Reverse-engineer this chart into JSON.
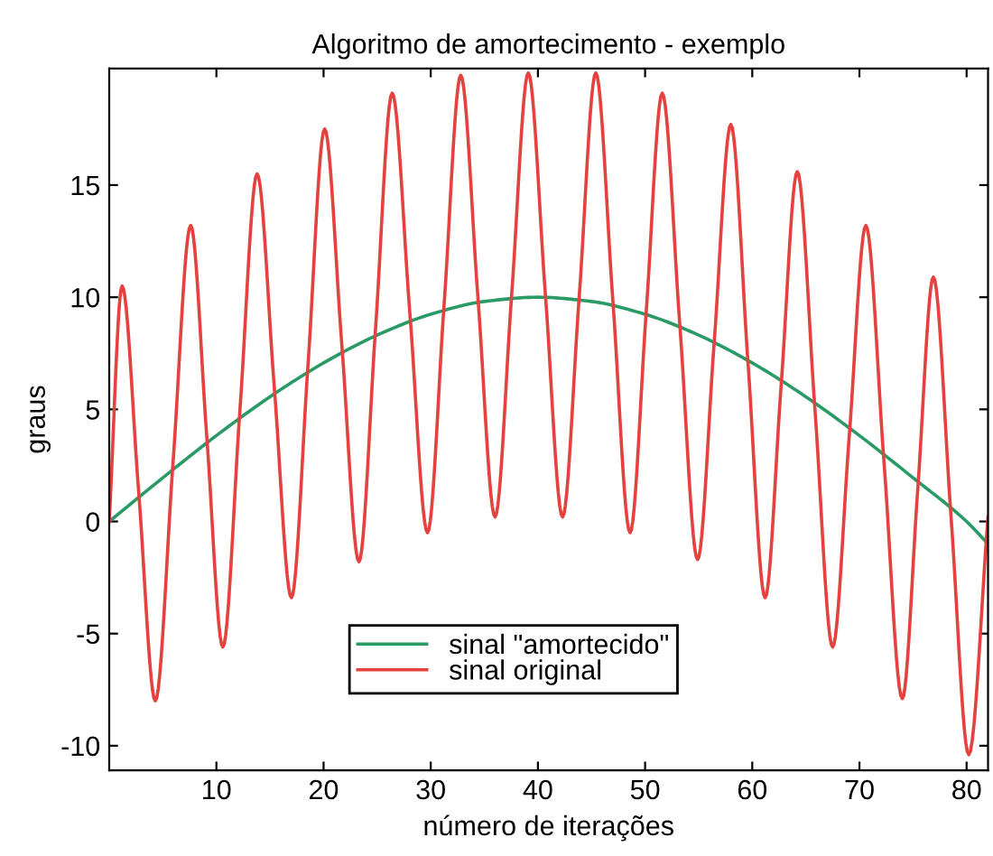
{
  "chart_data": {
    "type": "line",
    "title": "Algoritmo de amortecimento - exemplo",
    "xlabel": "número de iterações",
    "ylabel": "graus",
    "xlim": [
      0,
      82
    ],
    "ylim": [
      -11.1,
      20.2
    ],
    "xticks": [
      10,
      20,
      30,
      40,
      50,
      60,
      70,
      80
    ],
    "yticks": [
      -10,
      -5,
      0,
      5,
      10,
      15
    ],
    "grid": false,
    "legend": "bottom",
    "marker": "none",
    "line_style": "solid",
    "series": [
      {
        "name": "sinal \"amortecido\"",
        "color": "#2a9a66",
        "x": [
          0,
          5,
          10,
          15,
          20,
          25,
          30,
          35,
          40,
          45,
          50,
          55,
          60,
          65,
          70,
          75,
          80,
          82
        ],
        "values": [
          0,
          1.95,
          3.83,
          5.56,
          7.07,
          8.31,
          9.24,
          9.81,
          10,
          9.81,
          9.24,
          8.31,
          7.07,
          5.56,
          3.83,
          1.95,
          0,
          -1.0
        ]
      },
      {
        "name": "sinal original",
        "color": "#e5413f",
        "x": [
          0,
          1.2,
          2.75,
          4.3,
          5.95,
          7.6,
          9.1,
          10.6,
          12.2,
          13.8,
          15.4,
          17.0,
          18.55,
          20.1,
          21.7,
          23.3,
          24.85,
          26.4,
          28.05,
          29.7,
          31.25,
          32.8,
          34.4,
          36.0,
          37.55,
          39.1,
          40.7,
          42.3,
          43.85,
          45.4,
          47.0,
          48.6,
          50.1,
          51.6,
          53.25,
          54.9,
          56.45,
          58.0,
          59.6,
          61.2,
          62.7,
          64.2,
          65.85,
          67.5,
          69.05,
          70.6,
          72.3,
          74.0,
          75.45,
          76.9,
          78.55,
          80.2,
          82
        ],
        "values": [
          0,
          10.5,
          1.3,
          -8.0,
          2.6,
          13.2,
          3.8,
          -5.6,
          5.0,
          15.5,
          6.0,
          -3.4,
          7.0,
          17.5,
          7.9,
          -1.8,
          8.6,
          19.1,
          9.3,
          -0.5,
          9.7,
          19.9,
          10.0,
          0.2,
          10.1,
          20.0,
          10.1,
          0.2,
          10.0,
          20.0,
          9.8,
          -0.5,
          9.3,
          19.1,
          8.7,
          -1.7,
          8.0,
          17.7,
          7.1,
          -3.4,
          6.1,
          15.6,
          5.0,
          -5.6,
          3.8,
          13.2,
          2.6,
          -7.9,
          1.5,
          10.9,
          0.2,
          -10.4,
          0.2
        ]
      }
    ]
  }
}
